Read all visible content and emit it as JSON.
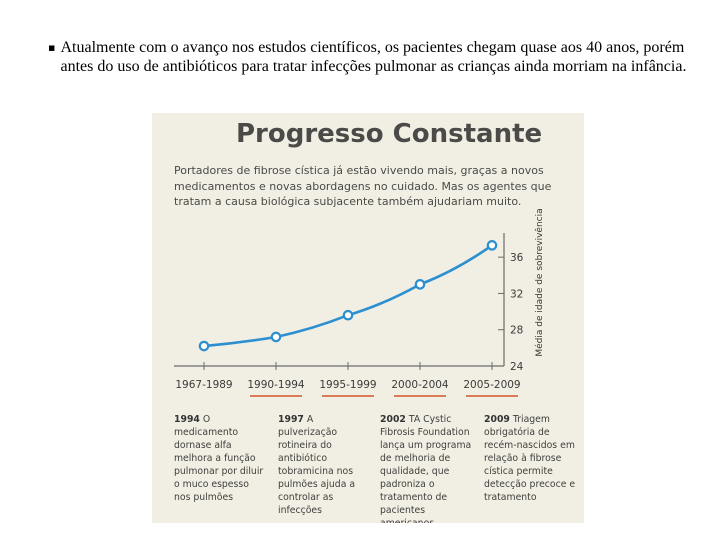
{
  "slide": {
    "bullet": "▪",
    "text": "Atualmente com o avanço nos estudos científicos, os pacientes chegam quase aos 40 anos, porém antes do uso de antibióticos para tratar infecções pulmonar as crianças ainda morriam na infância."
  },
  "figure": {
    "title": "Progresso Constante",
    "subtitle": "Portadores de fibrose cística já estão vivendo mais, graças a novos medicamentos e novas abordagens no cuidado. Mas os agentes que tratam a causa biológica subjacente também ajudariam muito.",
    "events": [
      {
        "year": "1994",
        "text": "O medicamento dornase alfa melhora a função pulmonar por diluir o muco espesso nos pulmões"
      },
      {
        "year": "1997",
        "text": "A pulverização rotineira do antibiótico tobramicina nos pulmões ajuda a controlar as infecções"
      },
      {
        "year": "2002",
        "text": "TA Cystic Fibrosis Foundation lança um programa de melhoria de qualidade, que padroniza o tratamento de pacientes americanos"
      },
      {
        "year": "2009",
        "text": "Triagem obrigatória de recém-nascidos em relação à fibrose cística permite detecção precoce e tratamento"
      }
    ]
  },
  "chart_data": {
    "type": "line",
    "categories": [
      "1967-1989",
      "1990-1994",
      "1995-1999",
      "2000-2004",
      "2005-2009"
    ],
    "series": [
      {
        "values": [
          26.2,
          27.2,
          29.6,
          33.0,
          37.3
        ]
      }
    ],
    "ylabel": "Média de idade de sobrevivência",
    "yticks": [
      24,
      28,
      32,
      36
    ],
    "ylim": [
      24,
      38
    ],
    "grid": false,
    "colors": {
      "line": "#2b8fd0",
      "axis": "#6b6b6b",
      "bracket": "#d4572a"
    }
  }
}
